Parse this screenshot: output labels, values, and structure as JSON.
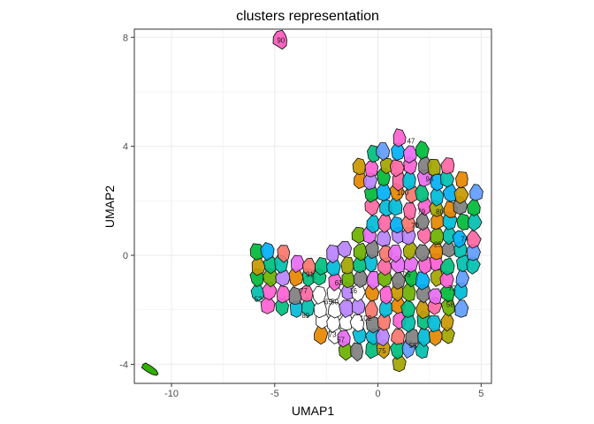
{
  "chart_data": {
    "type": "scatter",
    "title": "clusters representation",
    "xlabel": "UMAP1",
    "ylabel": "UMAP2",
    "xlim": [
      -11.8,
      5.5
    ],
    "ylim": [
      -4.7,
      8.3
    ],
    "xticks": [
      -10,
      -5,
      0,
      5
    ],
    "yticks": [
      -4,
      0,
      4,
      8
    ],
    "x_tick_labels": [
      "-10",
      "-5",
      "0",
      "5"
    ],
    "y_tick_labels": [
      "-4",
      "0",
      "4",
      "8"
    ],
    "grid": true,
    "legend": "none",
    "outlier_clusters": [
      {
        "label": "90",
        "x": -4.7,
        "y": 7.9,
        "color": "#ff66c1"
      },
      {
        "label": "",
        "x": -11.0,
        "y": -4.2,
        "color": "#31b000"
      }
    ],
    "main_cloud_label_samples": [
      {
        "label": "47",
        "x": 1.6,
        "y": 4.2
      },
      {
        "label": "94",
        "x": 2.5,
        "y": 2.8
      },
      {
        "label": "100",
        "x": 1.2,
        "y": 2.3
      },
      {
        "label": "79",
        "x": 2.1,
        "y": 1.6
      },
      {
        "label": "70",
        "x": 1.8,
        "y": 1.1
      },
      {
        "label": "74",
        "x": 4.2,
        "y": 0.6
      },
      {
        "label": "91",
        "x": -3.3,
        "y": -0.7
      },
      {
        "label": "77",
        "x": -3.6,
        "y": -1.3
      },
      {
        "label": "63",
        "x": -1.9,
        "y": -1.0
      },
      {
        "label": "16",
        "x": -1.2,
        "y": -1.3
      },
      {
        "label": "65",
        "x": -2.4,
        "y": -1.7
      },
      {
        "label": "50",
        "x": -2.1,
        "y": -1.7
      },
      {
        "label": "89",
        "x": -3.5,
        "y": -2.2
      },
      {
        "label": "52",
        "x": -5.8,
        "y": -1.6
      },
      {
        "label": "73",
        "x": -2.2,
        "y": -2.9
      },
      {
        "label": "57",
        "x": -1.8,
        "y": -3.1
      },
      {
        "label": "102",
        "x": -0.6,
        "y": -2.3
      },
      {
        "label": "75",
        "x": 0.2,
        "y": -3.5
      },
      {
        "label": "55",
        "x": 1.7,
        "y": -3.3
      },
      {
        "label": "72",
        "x": 3.6,
        "y": -1.2
      },
      {
        "label": "58",
        "x": 3.5,
        "y": -1.8
      },
      {
        "label": "25",
        "x": 2.9,
        "y": 0.4
      },
      {
        "label": "95",
        "x": 1.4,
        "y": -0.7
      },
      {
        "label": "80",
        "x": 3.0,
        "y": 1.6
      }
    ]
  }
}
